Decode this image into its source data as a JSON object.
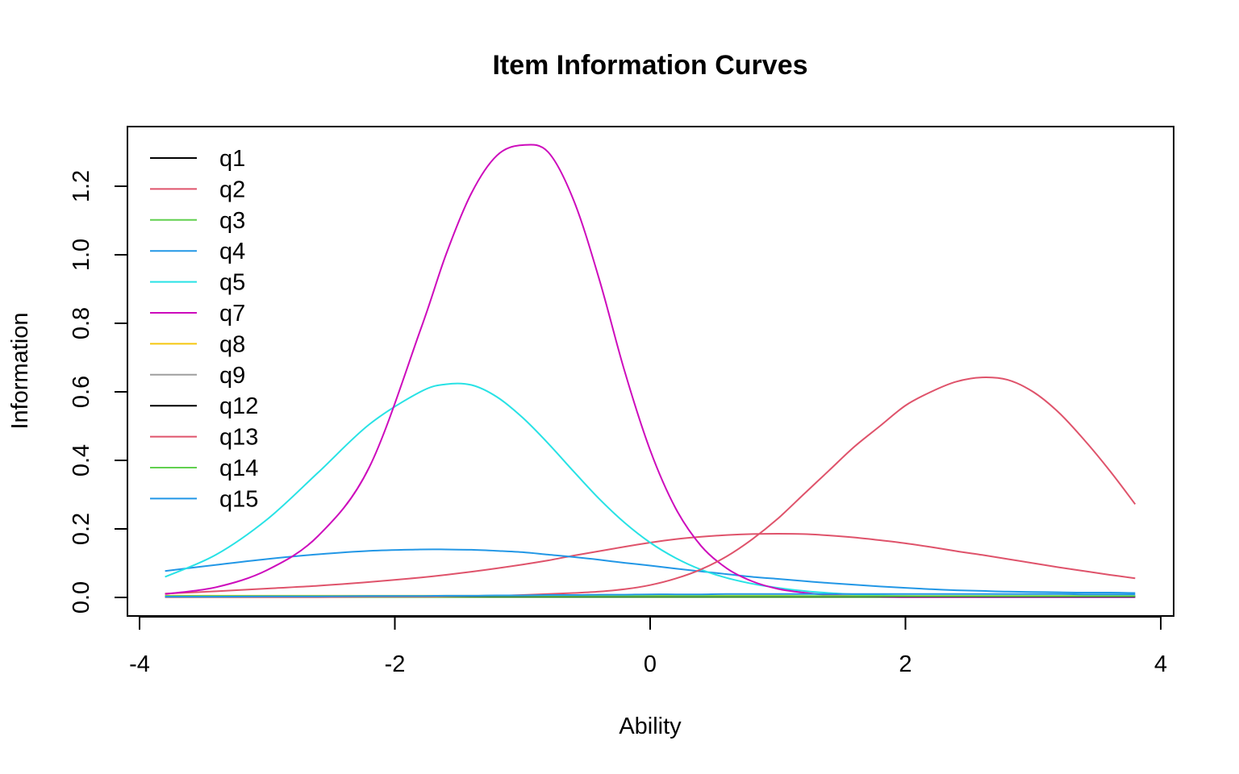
{
  "chart_data": {
    "type": "line",
    "title": "Item Information Curves",
    "xlabel": "Ability",
    "ylabel": "Information",
    "xlim": [
      -4,
      4
    ],
    "ylim": [
      0,
      1.32
    ],
    "x_ticks": [
      -4,
      -2,
      0,
      2,
      4
    ],
    "y_ticks": [
      0.0,
      0.2,
      0.4,
      0.6,
      0.8,
      1.0,
      1.2
    ],
    "x_tick_labels": [
      "-4",
      "-2",
      "0",
      "2",
      "4"
    ],
    "y_tick_labels": [
      "0.0",
      "0.2",
      "0.4",
      "0.6",
      "0.8",
      "1.0",
      "1.2"
    ],
    "grid": false,
    "legend_position": "top-left",
    "x": [
      -3.8,
      -3.4,
      -3.0,
      -2.6,
      -2.2,
      -1.8,
      -1.6,
      -1.4,
      -1.2,
      -1.0,
      -0.8,
      -0.6,
      -0.4,
      -0.2,
      0.0,
      0.2,
      0.4,
      0.6,
      0.8,
      1.0,
      1.2,
      1.4,
      1.6,
      1.8,
      2.0,
      2.2,
      2.4,
      2.6,
      2.8,
      3.0,
      3.2,
      3.4,
      3.6,
      3.8
    ],
    "series": [
      {
        "name": "q1",
        "color": "#000000",
        "values": [
          0.002,
          0.002,
          0.002,
          0.002,
          0.002,
          0.002,
          0.002,
          0.002,
          0.002,
          0.002,
          0.002,
          0.002,
          0.002,
          0.002,
          0.002,
          0.002,
          0.002,
          0.002,
          0.002,
          0.002,
          0.002,
          0.002,
          0.002,
          0.002,
          0.002,
          0.002,
          0.002,
          0.002,
          0.002,
          0.002,
          0.002,
          0.002,
          0.002,
          0.002
        ]
      },
      {
        "name": "q2",
        "color": "#DF536B",
        "values": [
          0.011,
          0.018,
          0.026,
          0.034,
          0.045,
          0.058,
          0.066,
          0.075,
          0.085,
          0.096,
          0.108,
          0.122,
          0.135,
          0.148,
          0.16,
          0.17,
          0.177,
          0.182,
          0.185,
          0.186,
          0.185,
          0.181,
          0.175,
          0.167,
          0.158,
          0.147,
          0.135,
          0.124,
          0.112,
          0.1,
          0.088,
          0.077,
          0.066,
          0.056
        ]
      },
      {
        "name": "q3",
        "color": "#61D04F",
        "values": [
          0.001,
          0.001,
          0.001,
          0.001,
          0.001,
          0.001,
          0.001,
          0.001,
          0.001,
          0.001,
          0.001,
          0.001,
          0.001,
          0.001,
          0.001,
          0.001,
          0.001,
          0.001,
          0.001,
          0.001,
          0.001,
          0.001,
          0.001,
          0.001,
          0.001,
          0.001,
          0.001,
          0.001,
          0.001,
          0.001,
          0.001,
          0.001,
          0.001,
          0.001
        ]
      },
      {
        "name": "q4",
        "color": "#2297E6",
        "values": [
          0.077,
          0.095,
          0.112,
          0.126,
          0.136,
          0.14,
          0.14,
          0.139,
          0.136,
          0.132,
          0.125,
          0.118,
          0.11,
          0.101,
          0.093,
          0.084,
          0.076,
          0.068,
          0.06,
          0.054,
          0.048,
          0.042,
          0.037,
          0.032,
          0.028,
          0.024,
          0.021,
          0.019,
          0.017,
          0.016,
          0.015,
          0.014,
          0.014,
          0.013
        ]
      },
      {
        "name": "q5",
        "color": "#28E2E5",
        "values": [
          0.06,
          0.125,
          0.228,
          0.365,
          0.505,
          0.6,
          0.622,
          0.62,
          0.585,
          0.525,
          0.45,
          0.368,
          0.288,
          0.218,
          0.16,
          0.115,
          0.081,
          0.057,
          0.04,
          0.028,
          0.019,
          0.013,
          0.009,
          0.006,
          0.004,
          0.003,
          0.002,
          0.001,
          0.001,
          0.001,
          0.001,
          0.001,
          0.001,
          0.001
        ]
      },
      {
        "name": "q7",
        "color": "#CD0BBC",
        "values": [
          0.01,
          0.03,
          0.08,
          0.18,
          0.38,
          0.78,
          1.0,
          1.18,
          1.29,
          1.32,
          1.3,
          1.16,
          0.93,
          0.66,
          0.43,
          0.26,
          0.15,
          0.085,
          0.047,
          0.025,
          0.014,
          0.007,
          0.004,
          0.002,
          0.001,
          0.001,
          0.001,
          0.001,
          0.001,
          0.001,
          0.001,
          0.001,
          0.001,
          0.001
        ]
      },
      {
        "name": "q8",
        "color": "#F5C710",
        "values": [
          0.005,
          0.005,
          0.005,
          0.005,
          0.005,
          0.005,
          0.005,
          0.005,
          0.005,
          0.005,
          0.005,
          0.005,
          0.005,
          0.005,
          0.005,
          0.005,
          0.005,
          0.005,
          0.005,
          0.005,
          0.004,
          0.004,
          0.004,
          0.004,
          0.004,
          0.004,
          0.004,
          0.004,
          0.004,
          0.004,
          0.004,
          0.004,
          0.004,
          0.004
        ]
      },
      {
        "name": "q9",
        "color": "#9E9E9E",
        "values": [
          0.002,
          0.002,
          0.002,
          0.002,
          0.003,
          0.003,
          0.003,
          0.003,
          0.003,
          0.003,
          0.003,
          0.003,
          0.003,
          0.003,
          0.003,
          0.003,
          0.003,
          0.003,
          0.003,
          0.003,
          0.003,
          0.003,
          0.003,
          0.003,
          0.003,
          0.003,
          0.003,
          0.003,
          0.003,
          0.003,
          0.003,
          0.003,
          0.003,
          0.003
        ]
      },
      {
        "name": "q12",
        "color": "#000000",
        "values": [
          0.003,
          0.003,
          0.003,
          0.003,
          0.003,
          0.003,
          0.003,
          0.003,
          0.003,
          0.003,
          0.003,
          0.003,
          0.003,
          0.003,
          0.003,
          0.003,
          0.003,
          0.003,
          0.003,
          0.003,
          0.003,
          0.003,
          0.003,
          0.003,
          0.003,
          0.003,
          0.003,
          0.003,
          0.003,
          0.003,
          0.003,
          0.003,
          0.003,
          0.003
        ]
      },
      {
        "name": "q13",
        "color": "#DF536B",
        "values": [
          0.001,
          0.001,
          0.001,
          0.001,
          0.002,
          0.002,
          0.003,
          0.004,
          0.005,
          0.007,
          0.01,
          0.013,
          0.017,
          0.024,
          0.036,
          0.055,
          0.082,
          0.12,
          0.17,
          0.23,
          0.3,
          0.37,
          0.44,
          0.5,
          0.56,
          0.6,
          0.63,
          0.642,
          0.635,
          0.6,
          0.54,
          0.46,
          0.37,
          0.272
        ]
      },
      {
        "name": "q14",
        "color": "#61D04F",
        "values": [
          0.004,
          0.004,
          0.004,
          0.004,
          0.004,
          0.004,
          0.004,
          0.004,
          0.004,
          0.004,
          0.004,
          0.004,
          0.004,
          0.004,
          0.004,
          0.004,
          0.004,
          0.004,
          0.004,
          0.004,
          0.004,
          0.004,
          0.004,
          0.004,
          0.004,
          0.004,
          0.004,
          0.004,
          0.004,
          0.004,
          0.004,
          0.004,
          0.004,
          0.004
        ]
      },
      {
        "name": "q15",
        "color": "#2297E6",
        "values": [
          0.002,
          0.002,
          0.003,
          0.003,
          0.004,
          0.004,
          0.005,
          0.005,
          0.006,
          0.006,
          0.007,
          0.007,
          0.008,
          0.008,
          0.009,
          0.009,
          0.009,
          0.01,
          0.01,
          0.01,
          0.01,
          0.01,
          0.01,
          0.01,
          0.01,
          0.01,
          0.01,
          0.01,
          0.01,
          0.01,
          0.01,
          0.009,
          0.009,
          0.009
        ]
      }
    ]
  }
}
